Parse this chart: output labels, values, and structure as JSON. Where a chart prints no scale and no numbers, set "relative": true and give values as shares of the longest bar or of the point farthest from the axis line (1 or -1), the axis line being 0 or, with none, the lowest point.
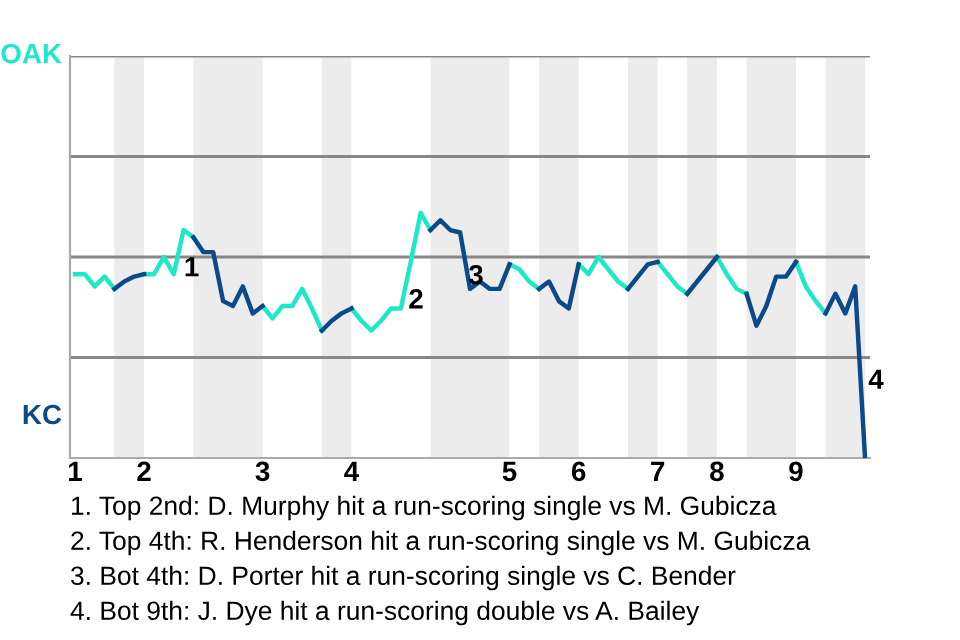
{
  "chart_data": {
    "type": "line",
    "relative": true,
    "categories": [
      "1",
      null,
      null,
      null,
      null,
      null,
      null,
      "2",
      null,
      null,
      null,
      null,
      null,
      null,
      null,
      null,
      null,
      null,
      null,
      "3",
      null,
      null,
      null,
      null,
      null,
      null,
      null,
      null,
      "4",
      null,
      null,
      null,
      null,
      null,
      null,
      null,
      null,
      null,
      null,
      null,
      null,
      null,
      null,
      null,
      "5",
      null,
      null,
      null,
      null,
      null,
      null,
      "6",
      null,
      null,
      null,
      null,
      null,
      null,
      null,
      "7",
      null,
      null,
      null,
      null,
      null,
      "8",
      null,
      null,
      null,
      null,
      null,
      null,
      null,
      "9",
      null,
      null,
      null,
      null,
      null,
      null,
      null
    ],
    "line_style": "solid",
    "ref_lines": [
      {
        "axis": "y",
        "value": 0.41,
        "color": "#888888"
      },
      {
        "axis": "y",
        "value": 0.82,
        "color": "#888888"
      },
      {
        "axis": "y",
        "value": 1.23,
        "color": "#888888"
      },
      {
        "axis": "y",
        "value": 1.64,
        "color": "#888888"
      }
    ],
    "series": [
      {
        "color": "#1de9c8",
        "values": [
          0.75,
          0.75,
          0.7,
          0.74,
          0.69,
          null,
          null,
          0.75,
          0.75,
          0.82,
          0.75,
          0.93,
          0.9,
          null,
          null,
          null,
          null,
          null,
          null,
          0.62,
          0.57,
          0.62,
          0.62,
          0.69,
          0.61,
          0.52,
          null,
          null,
          0.61,
          0.56,
          0.52,
          0.56,
          0.61,
          0.61,
          0.8,
          1,
          0.93,
          null,
          null,
          null,
          null,
          null,
          null,
          null,
          0.79,
          0.77,
          0.72,
          0.69,
          null,
          null,
          null,
          0.79,
          0.75,
          0.82,
          0.77,
          0.72,
          0.69,
          null,
          null,
          0.8,
          0.75,
          0.7,
          0.67,
          null,
          null,
          0.82,
          0.75,
          0.69,
          0.67,
          null,
          null,
          null,
          null,
          0.8,
          0.7,
          0.64,
          0.59,
          null,
          null,
          null,
          null
        ]
      },
      {
        "color": "#0b4a8a",
        "values": [
          null,
          null,
          null,
          null,
          0.69,
          0.72,
          0.74,
          0.75,
          null,
          null,
          null,
          null,
          0.9,
          0.84,
          0.84,
          0.64,
          0.62,
          0.7,
          0.59,
          0.62,
          null,
          null,
          null,
          null,
          null,
          0.52,
          0.56,
          0.59,
          0.61,
          null,
          null,
          null,
          null,
          null,
          null,
          null,
          0.93,
          0.97,
          0.93,
          0.92,
          0.69,
          0.72,
          0.69,
          0.69,
          0.79,
          null,
          null,
          0.69,
          0.72,
          0.64,
          0.61,
          0.79,
          null,
          null,
          null,
          null,
          0.69,
          0.74,
          0.79,
          0.8,
          null,
          null,
          0.67,
          0.72,
          0.77,
          0.82,
          null,
          null,
          0.67,
          0.54,
          0.62,
          0.74,
          0.74,
          0.8,
          null,
          null,
          0.59,
          0.67,
          0.59,
          0.7,
          0
        ]
      }
    ],
    "annotations": [
      "OAK",
      "KC",
      "1",
      "2",
      "3",
      "4",
      "1. Top 2nd: D. Murphy hit a run-scoring single vs M. Gubicza",
      "2. Top 4th: R. Henderson hit a run-scoring single vs M. Gubicza",
      "3. Bot 4th: D. Porter hit a run-scoring single vs C. Bender",
      "4. Bot 9th: J. Dye hit a run-scoring double vs A. Bailey"
    ]
  }
}
